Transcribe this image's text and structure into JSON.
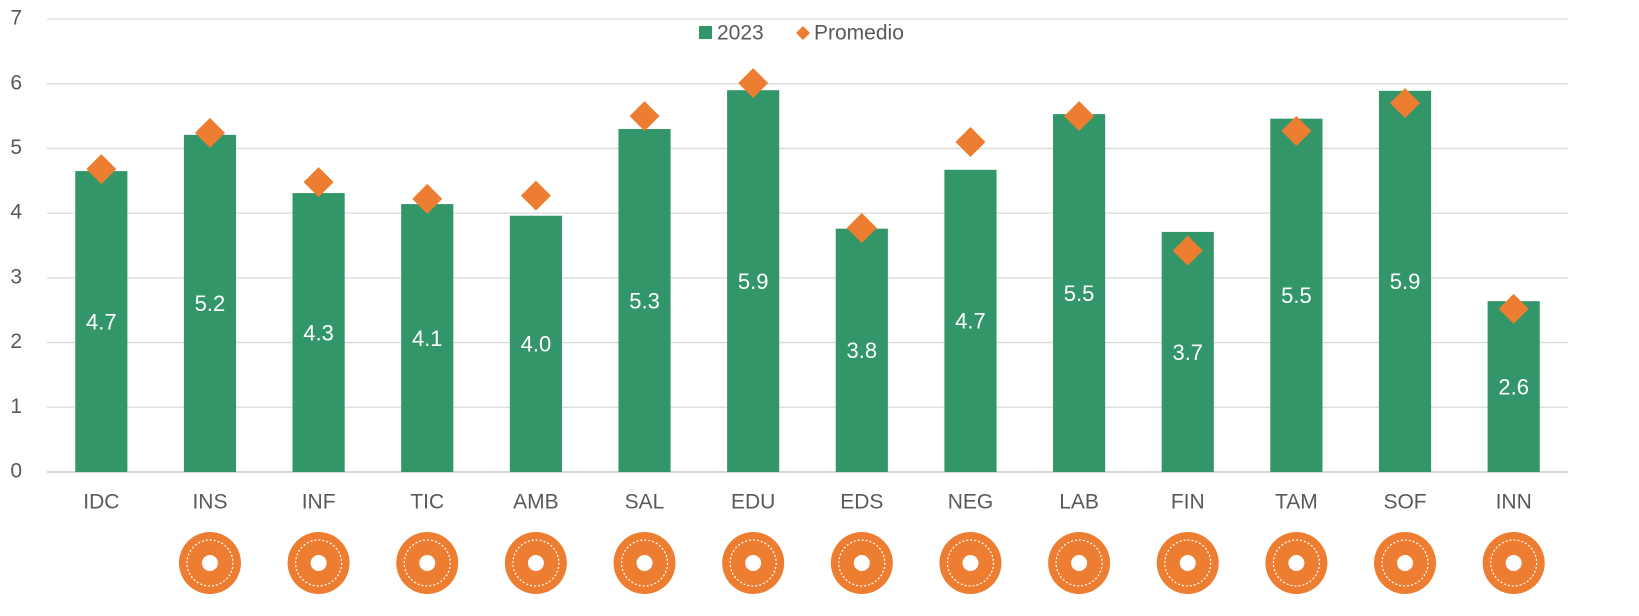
{
  "chart_data": {
    "type": "bar",
    "categories": [
      "IDC",
      "INS",
      "INF",
      "TIC",
      "AMB",
      "SAL",
      "EDU",
      "EDS",
      "NEG",
      "LAB",
      "FIN",
      "TAM",
      "SOF",
      "INN"
    ],
    "series": [
      {
        "name": "2023",
        "color": "#339669",
        "marker": "bar",
        "values": [
          4.65,
          5.21,
          4.31,
          4.14,
          3.96,
          5.3,
          5.9,
          3.76,
          4.67,
          5.53,
          3.71,
          5.46,
          5.89,
          2.64
        ],
        "value_labels": [
          "4.7",
          "5.2",
          "4.3",
          "4.1",
          "4.0",
          "5.3",
          "5.9",
          "3.8",
          "4.7",
          "5.5",
          "3.7",
          "5.5",
          "5.9",
          "2.6"
        ]
      },
      {
        "name": "Promedio",
        "color": "#ED7D31",
        "marker": "diamond",
        "values": [
          4.68,
          5.24,
          4.48,
          4.22,
          4.27,
          5.5,
          6.01,
          3.77,
          5.1,
          5.5,
          3.42,
          5.27,
          5.7,
          2.52
        ]
      }
    ],
    "ylim": [
      0,
      7
    ],
    "yticks": [
      0,
      1,
      2,
      3,
      4,
      5,
      6,
      7
    ],
    "grid": true,
    "legend": "top"
  }
}
